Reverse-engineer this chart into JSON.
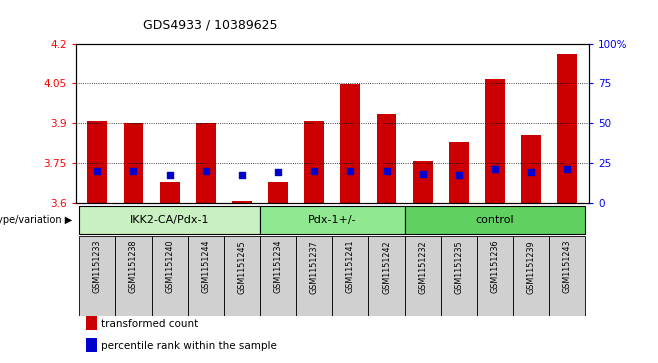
{
  "title": "GDS4933 / 10389625",
  "samples": [
    "GSM1151233",
    "GSM1151238",
    "GSM1151240",
    "GSM1151244",
    "GSM1151245",
    "GSM1151234",
    "GSM1151237",
    "GSM1151241",
    "GSM1151242",
    "GSM1151232",
    "GSM1151235",
    "GSM1151236",
    "GSM1151239",
    "GSM1151243"
  ],
  "transformed_count": [
    3.91,
    3.9,
    3.68,
    3.9,
    3.61,
    3.68,
    3.91,
    4.048,
    3.935,
    3.76,
    3.83,
    4.065,
    3.855,
    4.16
  ],
  "percentile_rank": [
    20.5,
    20.0,
    17.5,
    20.5,
    17.5,
    19.5,
    20.0,
    20.5,
    20.0,
    18.5,
    18.0,
    21.5,
    19.5,
    21.5
  ],
  "groups": [
    {
      "label": "IKK2-CA/Pdx-1",
      "start": 0,
      "end": 5,
      "color": "#c8f0c0"
    },
    {
      "label": "Pdx-1+/-",
      "start": 5,
      "end": 9,
      "color": "#90e890"
    },
    {
      "label": "control",
      "start": 9,
      "end": 14,
      "color": "#60d060"
    }
  ],
  "ylim_left": [
    3.6,
    4.2
  ],
  "yticks_left": [
    3.6,
    3.75,
    3.9,
    4.05,
    4.2
  ],
  "ylim_right": [
    0,
    100
  ],
  "yticks_right": [
    0,
    25,
    50,
    75,
    100
  ],
  "bar_color": "#cc0000",
  "marker_color": "#0000cc",
  "bar_width": 0.55,
  "legend_items": [
    {
      "label": "transformed count",
      "color": "#cc0000"
    },
    {
      "label": "percentile rank within the sample",
      "color": "#0000cc"
    }
  ],
  "background_tick": "#d0d0d0",
  "group_label": "genotype/variation"
}
